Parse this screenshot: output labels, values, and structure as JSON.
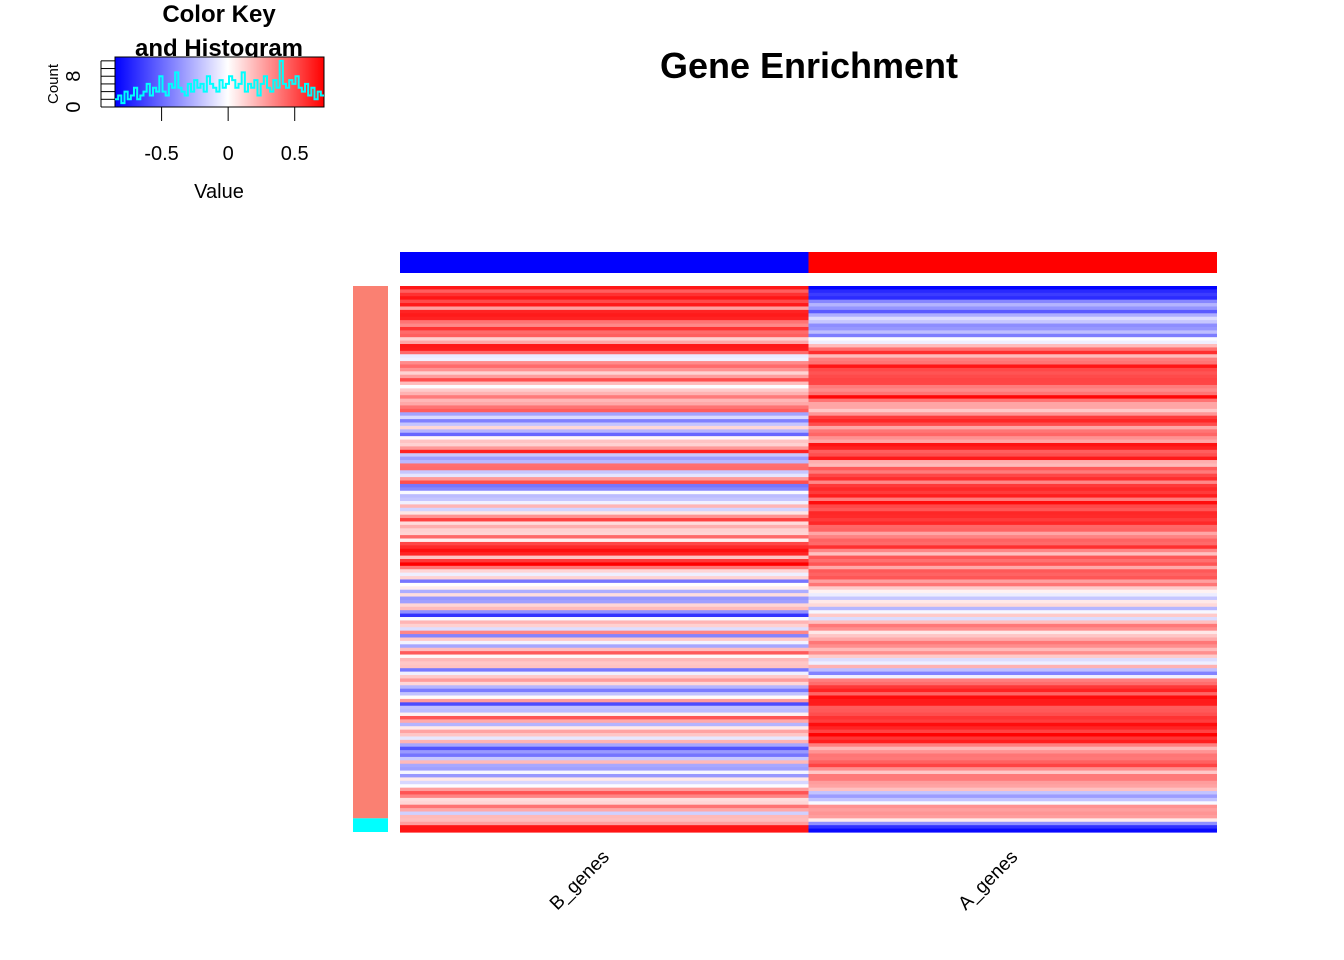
{
  "chart_data": {
    "type": "heatmap",
    "title": "Gene Enrichment",
    "columns": [
      "B_genes",
      "A_genes"
    ],
    "column_side_colors": [
      "#0000ff",
      "#ff0000"
    ],
    "row_side_colors": {
      "major": "#fa8072",
      "minor": "#00ffff",
      "minor_rows_at_bottom": 4
    },
    "row_count": 160,
    "color_scale": {
      "low": "#0000ff",
      "mid": "#ffffff",
      "high": "#ff0000",
      "range": [
        -0.85,
        0.72
      ]
    },
    "b_genes_profile": [
      0.6,
      0.5,
      0.55,
      0.4,
      0.6,
      0.35,
      0.55,
      0.6,
      0.3,
      0.4,
      0.5,
      0.55,
      0.2,
      0.35,
      0.6,
      0.45,
      0.1,
      -0.05,
      0.3,
      0.55,
      0.2,
      0.1,
      0.4,
      0.15,
      -0.1,
      0.3,
      0.5,
      0.2,
      0.35,
      0.45,
      -0.3,
      -0.2,
      -0.4,
      0.1,
      -0.35,
      -0.45,
      0.2,
      -0.1,
      0.4,
      0.6,
      -0.25,
      -0.5,
      0.3,
      0.5,
      -0.3,
      0.1,
      0.6,
      -0.45,
      -0.2,
      0.2,
      -0.4,
      0.1,
      0.3,
      -0.2,
      0.35,
      0.5,
      0.1,
      0.25,
      -0.15,
      0.4,
      0.2,
      0.55,
      0.65,
      0.7,
      0.2,
      0.6,
      0.7,
      0.3,
      -0.25,
      0.1,
      -0.4,
      0.2,
      -0.3,
      0.0,
      -0.5,
      -0.1,
      0.15,
      -0.35,
      -0.6,
      0.2,
      0.1,
      -0.2,
      0.3,
      -0.45,
      0.35,
      -0.3,
      0.2,
      0.4,
      -0.1,
      0.3,
      0.1,
      -0.5,
      0.2,
      0.45,
      0.1,
      -0.4,
      -0.6,
      -0.2,
      0.3,
      -0.55,
      0.1,
      -0.3,
      0.5,
      0.2,
      -0.4,
      0.3,
      0.1,
      -0.2,
      0.4,
      -0.6,
      -0.35,
      -0.5,
      -0.1,
      0.2,
      -0.55,
      0.15,
      -0.3,
      0.3,
      -0.4,
      0.1,
      0.5,
      0.2,
      -0.1,
      0.45,
      0.3,
      -0.05,
      0.1,
      0.35,
      0.6,
      0.7
    ],
    "a_genes_profile": [
      -0.7,
      -0.5,
      -0.6,
      -0.3,
      -0.55,
      0.0,
      -0.4,
      -0.2,
      -0.45,
      -0.1,
      0.3,
      0.45,
      0.2,
      0.5,
      0.6,
      0.4,
      0.55,
      0.3,
      0.5,
      0.65,
      0.35,
      0.15,
      0.45,
      0.6,
      0.3,
      0.5,
      0.2,
      0.55,
      0.4,
      0.6,
      0.25,
      0.5,
      0.35,
      0.45,
      0.6,
      0.7,
      0.4,
      0.55,
      0.3,
      0.65,
      0.45,
      0.5,
      0.2,
      0.35,
      0.6,
      0.25,
      0.4,
      0.5,
      0.15,
      0.45,
      0.3,
      0.55,
      -0.1,
      -0.2,
      0.2,
      -0.35,
      0.1,
      -0.05,
      0.3,
      0.15,
      0.35,
      0.5,
      0.2,
      0.4,
      -0.2,
      0.1,
      -0.3,
      0.2,
      0.45,
      0.6,
      0.55,
      0.7,
      0.4,
      0.65,
      0.5,
      0.6,
      0.7,
      0.45,
      0.55,
      0.3,
      0.2,
      0.5,
      0.35,
      0.15,
      0.4,
      0.25,
      0.1,
      -0.3,
      0.05,
      0.2,
      0.35,
      0.5,
      -0.75,
      -0.85
    ],
    "histogram": {
      "title_line1": "Color Key",
      "title_line2": "and Histogram",
      "xlabel": "Value",
      "ylabel": "Count",
      "x_ticks": [
        "-0.5",
        "0",
        "0.5"
      ],
      "x_tick_values": [
        -0.5,
        0,
        0.5
      ],
      "y_ticks": [
        "0",
        "8"
      ],
      "y_tick_values": [
        0,
        8
      ],
      "ylim": [
        0,
        13
      ],
      "counts": [
        2,
        3,
        1,
        4,
        2,
        3,
        5,
        2,
        3,
        4,
        6,
        3,
        5,
        4,
        8,
        4,
        3,
        6,
        5,
        9,
        5,
        4,
        3,
        6,
        4,
        7,
        5,
        6,
        4,
        8,
        6,
        5,
        4,
        7,
        5,
        6,
        8,
        7,
        5,
        6,
        9,
        4,
        6,
        5,
        7,
        3,
        6,
        8,
        5,
        4,
        7,
        5,
        12,
        6,
        5,
        7,
        6,
        8,
        5,
        4,
        6,
        3,
        5,
        2,
        4,
        3
      ]
    }
  }
}
